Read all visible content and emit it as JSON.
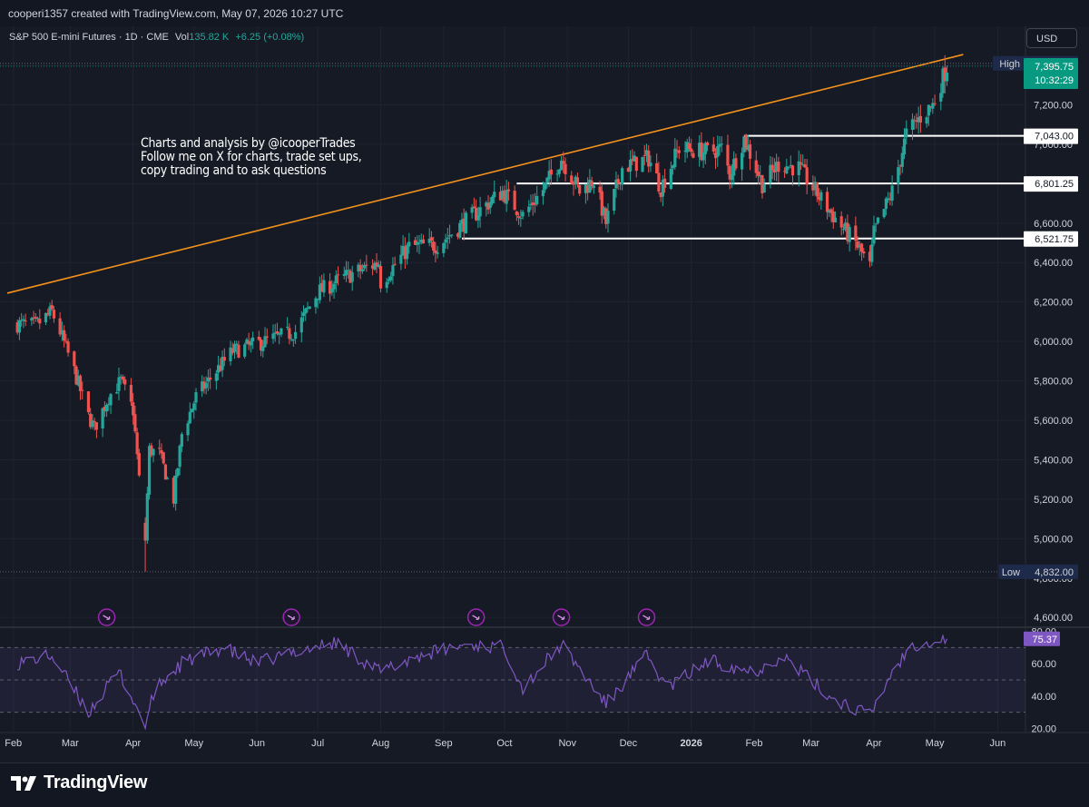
{
  "header": {
    "credit": "cooperi1357 created with TradingView.com, May 07, 2026 10:27 UTC"
  },
  "symbol": {
    "name": "S&P 500 E-mini Futures · 1D · CME",
    "vol_label": "Vol",
    "vol_value": "135.82 K",
    "change": "+6.25 (+0.08%)"
  },
  "currency": "USD",
  "annotation": [
    "Charts and analysis by @icooperTrades",
    "Follow me on X for charts, trade set ups,",
    "copy trading and to ask questions"
  ],
  "footer": {
    "logo_text": "TradingView"
  },
  "colors": {
    "background": "#161a25",
    "up": "#26a69a",
    "down": "#ef5350",
    "trendline": "#f7931a",
    "levels": "#ffffff",
    "rsi": "#7e57c2",
    "price_badge": "#089981"
  },
  "chart_data": [
    {
      "type": "candlestick",
      "title": "",
      "x_axis_labels": [
        "Feb",
        "Mar",
        "Apr",
        "May",
        "Jun",
        "Jul",
        "Aug",
        "Sep",
        "Oct",
        "Nov",
        "Dec",
        "2026",
        "Feb",
        "Mar",
        "Apr",
        "May",
        "Jun"
      ],
      "x_range": [
        "2025-01-29",
        "2026-06-12"
      ],
      "y_ticks": [
        "4,600.00",
        "4,800.00",
        "5,000.00",
        "5,200.00",
        "5,400.00",
        "5,600.00",
        "5,800.00",
        "6,000.00",
        "6,200.00",
        "6,400.00",
        "6,600.00",
        "6,800.00",
        "7,000.00",
        "7,200.00",
        "7,400.00"
      ],
      "ylim": [
        4555,
        7460
      ],
      "anchors": [
        [
          "2025-02-01",
          6090
        ],
        [
          "2025-02-12",
          6080
        ],
        [
          "2025-02-20",
          6150
        ],
        [
          "2025-02-24",
          6050
        ],
        [
          "2025-03-03",
          5850
        ],
        [
          "2025-03-10",
          5620
        ],
        [
          "2025-03-13",
          5560
        ],
        [
          "2025-03-20",
          5720
        ],
        [
          "2025-03-26",
          5800
        ],
        [
          "2025-04-01",
          5650
        ],
        [
          "2025-04-04",
          5300
        ],
        [
          "2025-04-07",
          5000
        ],
        [
          "2025-04-09",
          5450
        ],
        [
          "2025-04-14",
          5430
        ],
        [
          "2025-04-21",
          5200
        ],
        [
          "2025-04-25",
          5530
        ],
        [
          "2025-05-02",
          5720
        ],
        [
          "2025-05-12",
          5850
        ],
        [
          "2025-05-20",
          5950
        ],
        [
          "2025-06-05",
          6000
        ],
        [
          "2025-06-20",
          6050
        ],
        [
          "2025-07-01",
          6250
        ],
        [
          "2025-07-15",
          6330
        ],
        [
          "2025-07-31",
          6400
        ],
        [
          "2025-08-01",
          6300
        ],
        [
          "2025-08-15",
          6480
        ],
        [
          "2025-08-29",
          6490
        ],
        [
          "2025-09-12",
          6610
        ],
        [
          "2025-09-30",
          6760
        ],
        [
          "2025-10-10",
          6640
        ],
        [
          "2025-10-20",
          6770
        ],
        [
          "2025-10-29",
          6930
        ],
        [
          "2025-11-07",
          6760
        ],
        [
          "2025-11-14",
          6820
        ],
        [
          "2025-11-20",
          6600
        ],
        [
          "2025-11-28",
          6880
        ],
        [
          "2025-12-11",
          6930
        ],
        [
          "2025-12-17",
          6780
        ],
        [
          "2025-12-26",
          6980
        ],
        [
          "2026-01-09",
          6960
        ],
        [
          "2026-01-16",
          6980
        ],
        [
          "2026-01-20",
          6850
        ],
        [
          "2026-01-27",
          7030
        ],
        [
          "2026-02-05",
          6800
        ],
        [
          "2026-02-13",
          6900
        ],
        [
          "2026-02-23",
          6880
        ],
        [
          "2026-03-06",
          6720
        ],
        [
          "2026-03-17",
          6570
        ],
        [
          "2026-03-23",
          6500
        ],
        [
          "2026-03-30",
          6380
        ],
        [
          "2026-04-01",
          6550
        ],
        [
          "2026-04-10",
          6760
        ],
        [
          "2026-04-17",
          7050
        ],
        [
          "2026-04-24",
          7140
        ],
        [
          "2026-04-30",
          7200
        ],
        [
          "2026-05-07",
          7396
        ]
      ],
      "price_lines": [
        {
          "label": "High",
          "value": 7410.5,
          "text": "7,410.50"
        },
        {
          "label": "Low",
          "value": 4832.0,
          "text": "4,832.00"
        }
      ],
      "horizontal_levels": [
        {
          "value": 7043.0,
          "text": "7,043.00",
          "start": "2026-01-27"
        },
        {
          "value": 6801.25,
          "text": "6,801.25",
          "start": "2025-10-07"
        },
        {
          "value": 6521.75,
          "text": "6,521.75",
          "start": "2025-09-10"
        }
      ],
      "trendline": {
        "start": [
          "2025-01-29",
          6245
        ],
        "end": [
          "2026-05-15",
          7455
        ]
      },
      "last_price": {
        "value": 7395.75,
        "text": "7,395.75",
        "countdown": "10:32:29"
      },
      "event_markers": [
        "2025-03-19",
        "2025-06-18",
        "2025-09-17",
        "2025-10-29",
        "2025-12-10"
      ]
    },
    {
      "type": "line",
      "title": "",
      "y_ticks": [
        "20.00",
        "40.00",
        "60.00",
        "80.00"
      ],
      "ylim": [
        18,
        82
      ],
      "bands": [
        30,
        50,
        70
      ],
      "last_value": {
        "value": 75.37,
        "text": "75.37"
      },
      "anchors": [
        [
          "2025-02-01",
          60
        ],
        [
          "2025-02-20",
          65
        ],
        [
          "2025-03-10",
          30
        ],
        [
          "2025-03-25",
          55
        ],
        [
          "2025-04-07",
          22
        ],
        [
          "2025-04-12",
          45
        ],
        [
          "2025-04-25",
          60
        ],
        [
          "2025-05-15",
          70
        ],
        [
          "2025-06-01",
          60
        ],
        [
          "2025-06-20",
          68
        ],
        [
          "2025-07-10",
          73
        ],
        [
          "2025-08-01",
          55
        ],
        [
          "2025-08-20",
          65
        ],
        [
          "2025-09-12",
          72
        ],
        [
          "2025-10-01",
          70
        ],
        [
          "2025-10-10",
          45
        ],
        [
          "2025-10-29",
          72
        ],
        [
          "2025-11-20",
          35
        ],
        [
          "2025-12-10",
          65
        ],
        [
          "2025-12-20",
          45
        ],
        [
          "2026-01-10",
          62
        ],
        [
          "2026-02-01",
          55
        ],
        [
          "2026-02-15",
          65
        ],
        [
          "2026-03-10",
          40
        ],
        [
          "2026-03-30",
          28
        ],
        [
          "2026-04-10",
          55
        ],
        [
          "2026-04-20",
          72
        ],
        [
          "2026-05-07",
          75.37
        ]
      ]
    }
  ]
}
